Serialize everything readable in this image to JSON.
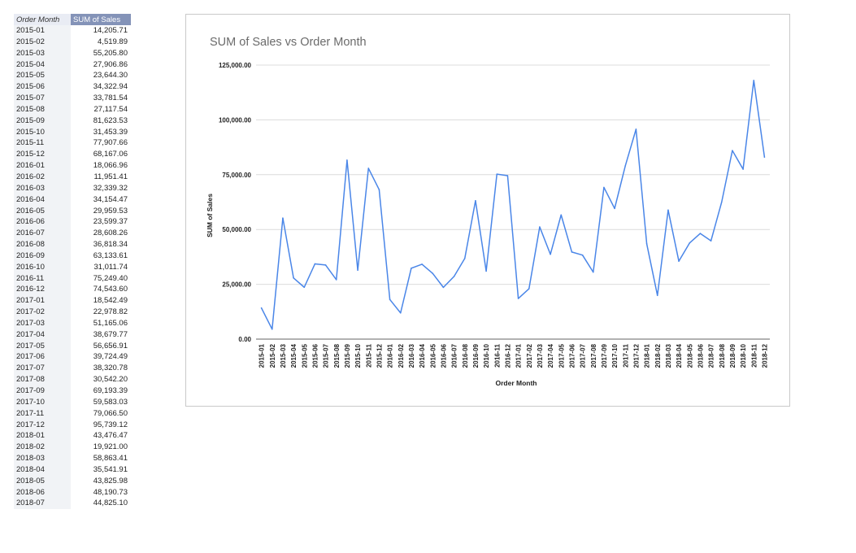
{
  "table": {
    "headers": [
      "Order Month",
      "SUM of Sales"
    ],
    "rows": [
      [
        "2015-01",
        "14,205.71"
      ],
      [
        "2015-02",
        "4,519.89"
      ],
      [
        "2015-03",
        "55,205.80"
      ],
      [
        "2015-04",
        "27,906.86"
      ],
      [
        "2015-05",
        "23,644.30"
      ],
      [
        "2015-06",
        "34,322.94"
      ],
      [
        "2015-07",
        "33,781.54"
      ],
      [
        "2015-08",
        "27,117.54"
      ],
      [
        "2015-09",
        "81,623.53"
      ],
      [
        "2015-10",
        "31,453.39"
      ],
      [
        "2015-11",
        "77,907.66"
      ],
      [
        "2015-12",
        "68,167.06"
      ],
      [
        "2016-01",
        "18,066.96"
      ],
      [
        "2016-02",
        "11,951.41"
      ],
      [
        "2016-03",
        "32,339.32"
      ],
      [
        "2016-04",
        "34,154.47"
      ],
      [
        "2016-05",
        "29,959.53"
      ],
      [
        "2016-06",
        "23,599.37"
      ],
      [
        "2016-07",
        "28,608.26"
      ],
      [
        "2016-08",
        "36,818.34"
      ],
      [
        "2016-09",
        "63,133.61"
      ],
      [
        "2016-10",
        "31,011.74"
      ],
      [
        "2016-11",
        "75,249.40"
      ],
      [
        "2016-12",
        "74,543.60"
      ],
      [
        "2017-01",
        "18,542.49"
      ],
      [
        "2017-02",
        "22,978.82"
      ],
      [
        "2017-03",
        "51,165.06"
      ],
      [
        "2017-04",
        "38,679.77"
      ],
      [
        "2017-05",
        "56,656.91"
      ],
      [
        "2017-06",
        "39,724.49"
      ],
      [
        "2017-07",
        "38,320.78"
      ],
      [
        "2017-08",
        "30,542.20"
      ],
      [
        "2017-09",
        "69,193.39"
      ],
      [
        "2017-10",
        "59,583.03"
      ],
      [
        "2017-11",
        "79,066.50"
      ],
      [
        "2017-12",
        "95,739.12"
      ],
      [
        "2018-01",
        "43,476.47"
      ],
      [
        "2018-02",
        "19,921.00"
      ],
      [
        "2018-03",
        "58,863.41"
      ],
      [
        "2018-04",
        "35,541.91"
      ],
      [
        "2018-05",
        "43,825.98"
      ],
      [
        "2018-06",
        "48,190.73"
      ],
      [
        "2018-07",
        "44,825.10"
      ]
    ]
  },
  "chart_data": {
    "type": "line",
    "title": "SUM of Sales vs Order Month",
    "xlabel": "Order Month",
    "ylabel": "SUM of Sales",
    "ylim": [
      0,
      125000
    ],
    "yticks": [
      "0.00",
      "25,000.00",
      "50,000.00",
      "75,000.00",
      "100,000.00",
      "125,000.00"
    ],
    "grid": true,
    "line_color": "#4a86e8",
    "x": [
      "2015-01",
      "2015-02",
      "2015-03",
      "2015-04",
      "2015-05",
      "2015-06",
      "2015-07",
      "2015-08",
      "2015-09",
      "2015-10",
      "2015-11",
      "2015-12",
      "2016-01",
      "2016-02",
      "2016-03",
      "2016-04",
      "2016-05",
      "2016-06",
      "2016-07",
      "2016-08",
      "2016-09",
      "2016-10",
      "2016-11",
      "2016-12",
      "2017-01",
      "2017-02",
      "2017-03",
      "2017-04",
      "2017-05",
      "2017-06",
      "2017-07",
      "2017-08",
      "2017-09",
      "2017-10",
      "2017-11",
      "2017-12",
      "2018-01",
      "2018-02",
      "2018-03",
      "2018-04",
      "2018-05",
      "2018-06",
      "2018-07",
      "2018-08",
      "2018-09",
      "2018-10",
      "2018-11",
      "2018-12"
    ],
    "series": [
      {
        "values": [
          14205.71,
          4519.89,
          55205.8,
          27906.86,
          23644.3,
          34322.94,
          33781.54,
          27117.54,
          81623.53,
          31453.39,
          77907.66,
          68167.06,
          18066.96,
          11951.41,
          32339.32,
          34154.47,
          29959.53,
          23599.37,
          28608.26,
          36818.34,
          63133.61,
          31011.74,
          75249.4,
          74543.6,
          18542.49,
          22978.82,
          51165.06,
          38679.77,
          56656.91,
          39724.49,
          38320.78,
          30542.2,
          69193.39,
          59583.03,
          79066.5,
          95739.12,
          43476.47,
          19921.0,
          58863.41,
          35541.91,
          43825.98,
          48190.73,
          44825.1,
          62500,
          86000,
          77500,
          118000,
          83000
        ]
      }
    ]
  }
}
